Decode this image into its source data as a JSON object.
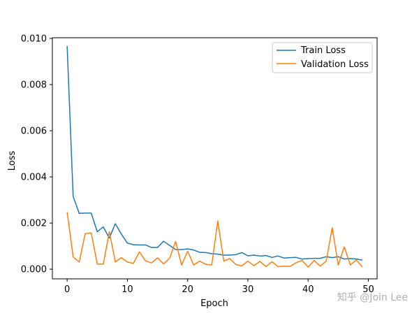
{
  "chart_data": {
    "type": "line",
    "title": "",
    "xlabel": "Epoch",
    "ylabel": "Loss",
    "xlim": [
      -2.45,
      51.45
    ],
    "ylim": [
      -0.00042,
      0.01003
    ],
    "x_ticks": [
      0,
      10,
      20,
      30,
      40,
      50
    ],
    "y_ticks": [
      0.0,
      0.002,
      0.004,
      0.006,
      0.008,
      0.01
    ],
    "y_tick_labels": [
      "0.000",
      "0.002",
      "0.004",
      "0.006",
      "0.008",
      "0.010"
    ],
    "grid": false,
    "legend_position": "top-right",
    "x": [
      0,
      1,
      2,
      3,
      4,
      5,
      6,
      7,
      8,
      9,
      10,
      11,
      12,
      13,
      14,
      15,
      16,
      17,
      18,
      19,
      20,
      21,
      22,
      23,
      24,
      25,
      26,
      27,
      28,
      29,
      30,
      31,
      32,
      33,
      34,
      35,
      36,
      37,
      38,
      39,
      40,
      41,
      42,
      43,
      44,
      45,
      46,
      47,
      48,
      49
    ],
    "series": [
      {
        "name": "Train Loss",
        "color": "#1f77b4",
        "values": [
          0.00967,
          0.00315,
          0.00242,
          0.00243,
          0.00243,
          0.00162,
          0.00183,
          0.00135,
          0.00197,
          0.00152,
          0.00113,
          0.00106,
          0.00105,
          0.00105,
          0.00094,
          0.00094,
          0.00121,
          0.00103,
          0.00085,
          0.00085,
          0.00088,
          0.00083,
          0.00073,
          0.00072,
          0.00067,
          0.00065,
          0.00061,
          0.00061,
          0.00063,
          0.00072,
          0.00058,
          0.00061,
          0.00057,
          0.00059,
          0.00051,
          0.00057,
          0.00048,
          0.0005,
          0.00051,
          0.00044,
          0.00046,
          0.00047,
          0.00047,
          0.00054,
          0.0005,
          0.00054,
          0.00044,
          0.00046,
          0.00044,
          0.00039
        ]
      },
      {
        "name": "Validation Loss",
        "color": "#ff7f0e",
        "values": [
          0.00247,
          0.00053,
          0.00031,
          0.00154,
          0.00157,
          0.00022,
          0.00022,
          0.00162,
          0.00031,
          0.0005,
          0.00031,
          0.00025,
          0.00075,
          0.00036,
          0.00027,
          0.00049,
          0.00023,
          0.00047,
          0.0012,
          0.00018,
          0.00078,
          0.00018,
          0.00035,
          0.00021,
          0.00018,
          0.00209,
          0.00035,
          0.00046,
          0.0002,
          0.00014,
          0.00035,
          0.00015,
          0.00034,
          0.00011,
          0.00032,
          0.00011,
          0.00013,
          0.00012,
          0.00028,
          0.00038,
          9e-05,
          0.00038,
          0.00013,
          0.00035,
          0.0018,
          0.00018,
          0.00097,
          0.00018,
          0.0004,
          9e-05
        ]
      }
    ]
  },
  "watermark": "知乎 @Join Lee"
}
